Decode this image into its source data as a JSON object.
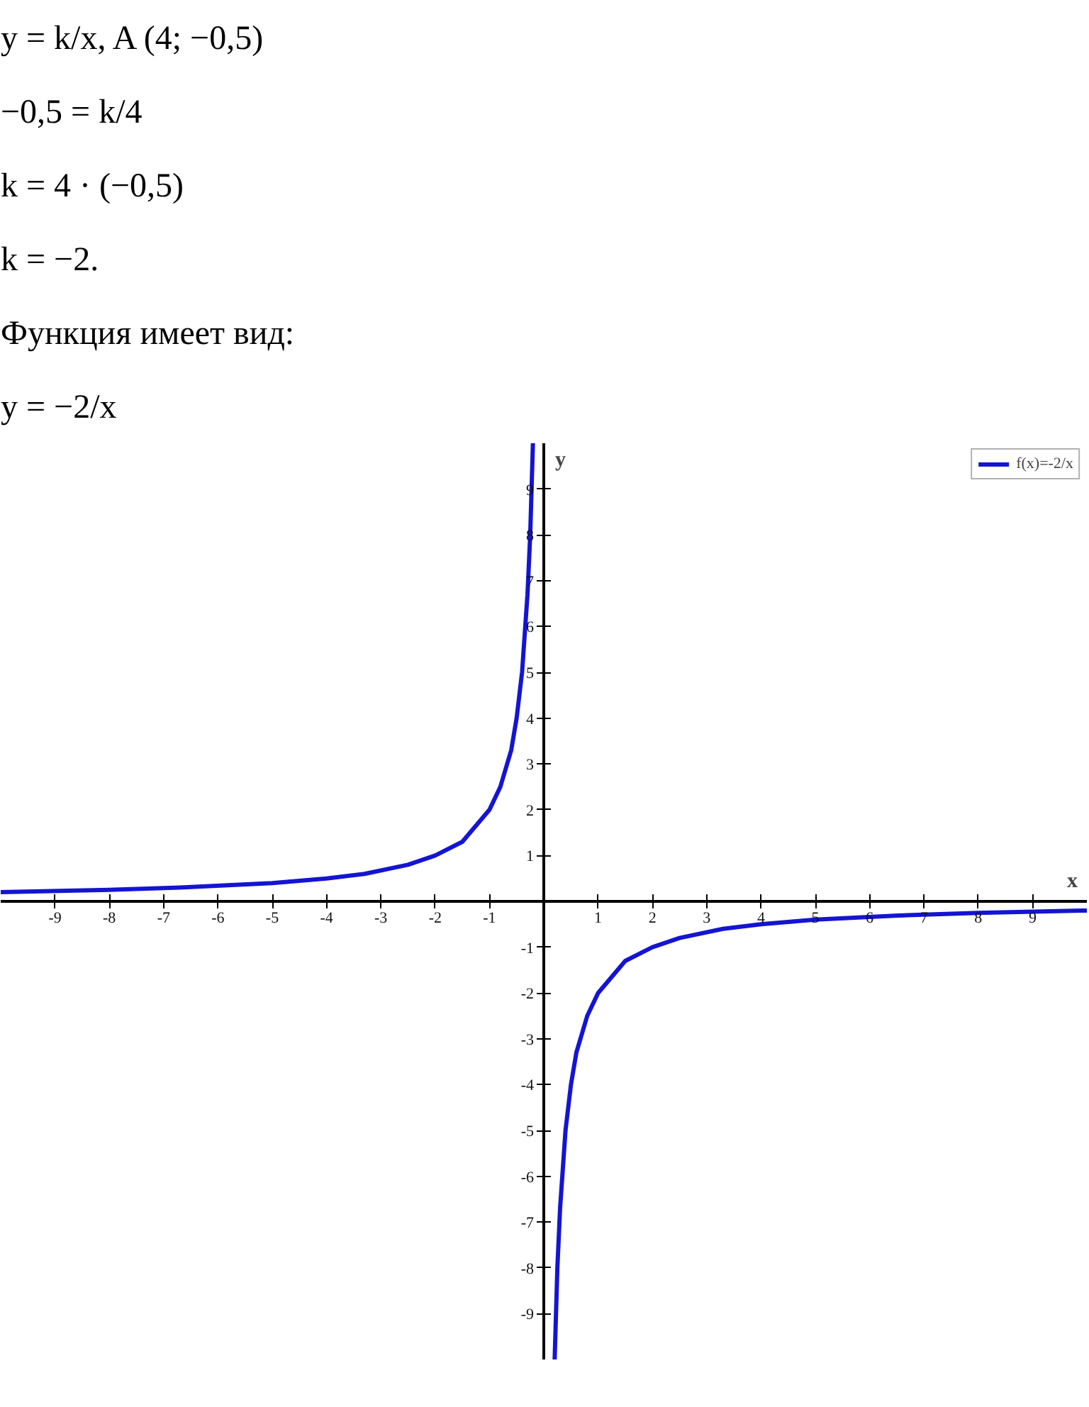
{
  "chart_data": {
    "type": "line",
    "annotations": [
      "y = k/x, A (4; −0,5)",
      "−0,5 = k/4",
      "k = 4 · (−0,5)",
      "k = −2.",
      "Функция имеет вид:",
      "y = −2/x"
    ],
    "xlabel": "x",
    "ylabel": "y",
    "x": [
      -10,
      -8,
      -6.7,
      -5,
      -4,
      -3.3,
      -2.5,
      -2,
      -1.5,
      -1,
      -0.8,
      -0.6,
      -0.5,
      -0.4,
      -0.3,
      -0.25,
      -0.2,
      0,
      0.2,
      0.25,
      0.3,
      0.4,
      0.5,
      0.6,
      0.8,
      1,
      1.5,
      2,
      2.5,
      3.3,
      4,
      5,
      6.7,
      8,
      10
    ],
    "series": [
      {
        "name": "f(x)=-2/x",
        "color": "#1414d2",
        "values": [
          0.2,
          0.25,
          0.3,
          0.4,
          0.5,
          0.6,
          0.8,
          1,
          1.3,
          2,
          2.5,
          3.3,
          4,
          5,
          6.7,
          8,
          10,
          null,
          -10,
          -8,
          -6.7,
          -5,
          -4,
          -3.3,
          -2.5,
          -2,
          -1.3,
          -1,
          -0.8,
          -0.6,
          -0.5,
          -0.4,
          -0.3,
          -0.25,
          -0.2
        ]
      }
    ],
    "xlim": [
      -10,
      10
    ],
    "ylim": [
      -10,
      10
    ],
    "xticks": [
      -9,
      -8,
      -7,
      -6,
      -5,
      -4,
      -3,
      -2,
      -1,
      1,
      2,
      3,
      4,
      5,
      6,
      7,
      8,
      9
    ],
    "yticks": [
      -9,
      -8,
      -7,
      -6,
      -5,
      -4,
      -3,
      -2,
      -1,
      1,
      2,
      3,
      4,
      5,
      6,
      7,
      8,
      9
    ],
    "legend": "top right",
    "line_style": "solid"
  }
}
